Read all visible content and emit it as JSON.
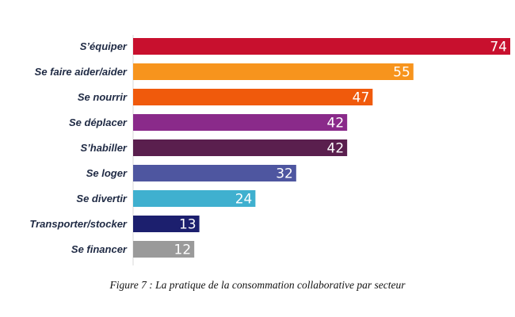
{
  "chart_data": {
    "type": "bar",
    "orientation": "horizontal",
    "categories": [
      "S’équiper",
      "Se faire aider/aider",
      "Se nourrir",
      "Se déplacer",
      "S’habiller",
      "Se loger",
      "Se divertir",
      "Transporter/stocker",
      "Se financer"
    ],
    "values": [
      74,
      55,
      47,
      42,
      42,
      32,
      24,
      13,
      12
    ],
    "colors": [
      "#c8102e",
      "#f7941d",
      "#f05a0c",
      "#8a2a8a",
      "#5a1f4e",
      "#4e56a0",
      "#3fb0cf",
      "#1c1f6e",
      "#9a9a9a"
    ],
    "xlim": [
      0,
      74
    ],
    "grid": false,
    "legend": "none",
    "data_labels": true
  },
  "caption": "Figure 7  : La pratique de la consommation collaborative par secteur"
}
